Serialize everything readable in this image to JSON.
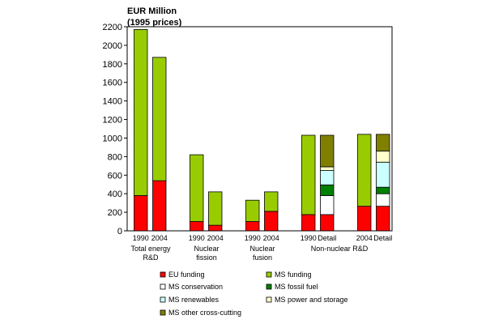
{
  "chart_data": {
    "type": "bar",
    "subtype": "stacked",
    "unit_title_line1": "EUR Million",
    "unit_title_line2": "(1995 prices)",
    "ylim": [
      0,
      2200
    ],
    "yticks": [
      0,
      200,
      400,
      600,
      800,
      1000,
      1200,
      1400,
      1600,
      1800,
      2000,
      2200
    ],
    "grid": false,
    "legend_position": "bottom",
    "series": [
      {
        "key": "eu",
        "name": "EU funding",
        "color": "#ff0000"
      },
      {
        "key": "ms",
        "name": "MS funding",
        "color": "#99cc00"
      },
      {
        "key": "conservation",
        "name": "MS conservation",
        "color": "#ffffff"
      },
      {
        "key": "fossil",
        "name": "MS fossil fuel",
        "color": "#008000"
      },
      {
        "key": "renewables",
        "name": "MS renewables",
        "color": "#ccffff"
      },
      {
        "key": "power",
        "name": "MS power and storage",
        "color": "#ffffcc"
      },
      {
        "key": "crosscut",
        "name": "MS other cross-cutting",
        "color": "#808000"
      }
    ],
    "groups": [
      {
        "label_lines": [
          "Total energy",
          "R&D"
        ],
        "bars": [
          {
            "label": "1990",
            "stack": {
              "eu": 380,
              "ms": 1790
            }
          },
          {
            "label": "2004",
            "stack": {
              "eu": 540,
              "ms": 1330
            }
          }
        ]
      },
      {
        "label_lines": [
          "Nuclear",
          "fission"
        ],
        "bars": [
          {
            "label": "1990",
            "stack": {
              "eu": 100,
              "ms": 720
            }
          },
          {
            "label": "2004",
            "stack": {
              "eu": 60,
              "ms": 360
            }
          }
        ]
      },
      {
        "label_lines": [
          "Nuclear",
          "fusion"
        ],
        "bars": [
          {
            "label": "1990",
            "stack": {
              "eu": 100,
              "ms": 230
            }
          },
          {
            "label": "2004",
            "stack": {
              "eu": 210,
              "ms": 210
            }
          }
        ]
      },
      {
        "label_lines": [
          "Non-nuclear R&D"
        ],
        "bars": [
          {
            "label": "1990",
            "stack": {
              "eu": 175,
              "ms": 855
            }
          },
          {
            "label": "Detail",
            "stack": {
              "eu": 175,
              "conservation": 205,
              "fossil": 115,
              "renewables": 155,
              "power": 40,
              "crosscut": 340
            }
          },
          {
            "label": "2004",
            "stack": {
              "eu": 265,
              "ms": 775
            }
          },
          {
            "label": "Detail",
            "stack": {
              "eu": 265,
              "conservation": 135,
              "fossil": 70,
              "renewables": 270,
              "power": 120,
              "crosscut": 180
            }
          }
        ]
      }
    ]
  }
}
